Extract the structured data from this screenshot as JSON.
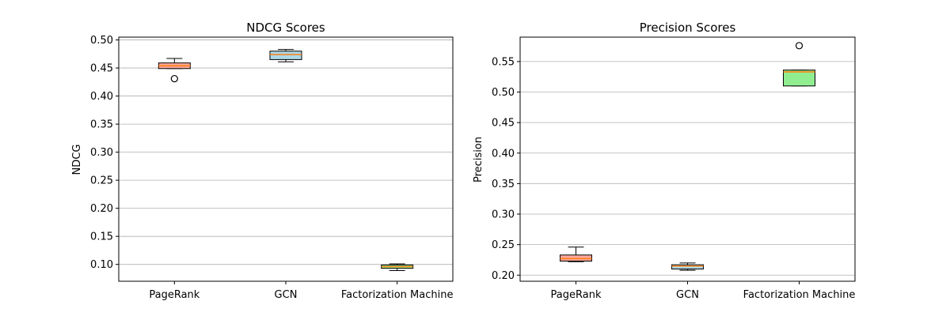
{
  "chart_data": [
    {
      "type": "box",
      "title": "NDCG Scores",
      "xlabel": "",
      "ylabel": "NDCG",
      "ylim": [
        0.07,
        0.505
      ],
      "yticks": [
        0.1,
        0.15,
        0.2,
        0.25,
        0.3,
        0.35,
        0.4,
        0.45,
        0.5
      ],
      "ytick_labels": [
        "0.10",
        "0.15",
        "0.20",
        "0.25",
        "0.30",
        "0.35",
        "0.40",
        "0.45",
        "0.50"
      ],
      "grid": "y",
      "categories": [
        "PageRank",
        "GCN",
        "Factorization Machine"
      ],
      "boxes": [
        {
          "whislo": 0.449,
          "q1": 0.449,
          "med": 0.454,
          "q3": 0.459,
          "whishi": 0.467,
          "fliers": [
            0.431
          ],
          "color": "#fca79b"
        },
        {
          "whislo": 0.461,
          "q1": 0.465,
          "med": 0.474,
          "q3": 0.48,
          "whishi": 0.483,
          "fliers": [],
          "color": "#add8e6"
        },
        {
          "whislo": 0.089,
          "q1": 0.093,
          "med": 0.096,
          "q3": 0.099,
          "whishi": 0.101,
          "fliers": [],
          "color": "#90ee90"
        }
      ]
    },
    {
      "type": "box",
      "title": "Precision Scores",
      "xlabel": "",
      "ylabel": "Precision",
      "ylim": [
        0.19,
        0.59
      ],
      "yticks": [
        0.2,
        0.25,
        0.3,
        0.35,
        0.4,
        0.45,
        0.5,
        0.55
      ],
      "ytick_labels": [
        "0.20",
        "0.25",
        "0.30",
        "0.35",
        "0.40",
        "0.45",
        "0.50",
        "0.55"
      ],
      "grid": "y",
      "categories": [
        "PageRank",
        "GCN",
        "Factorization Machine"
      ],
      "boxes": [
        {
          "whislo": 0.222,
          "q1": 0.223,
          "med": 0.227,
          "q3": 0.233,
          "whishi": 0.246,
          "fliers": [],
          "color": "#fca79b"
        },
        {
          "whislo": 0.208,
          "q1": 0.21,
          "med": 0.215,
          "q3": 0.217,
          "whishi": 0.22,
          "fliers": [],
          "color": "#add8e6"
        },
        {
          "whislo": 0.51,
          "q1": 0.51,
          "med": 0.533,
          "q3": 0.536,
          "whishi": 0.536,
          "fliers": [
            0.576
          ],
          "color": "#90ee90"
        }
      ]
    }
  ]
}
